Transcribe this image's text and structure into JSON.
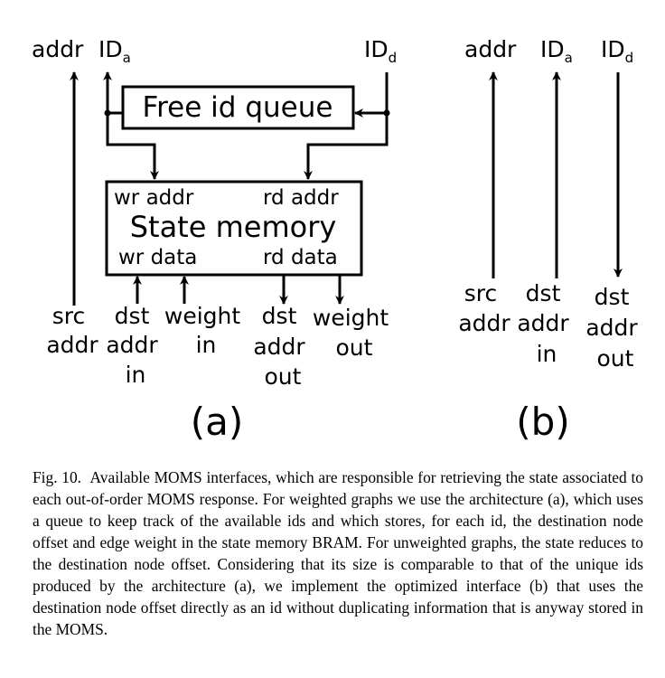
{
  "figure_a": {
    "top_addr": "addr",
    "top_ida": "ID",
    "top_ida_sub": "a",
    "top_idd": "ID",
    "top_idd_sub": "d",
    "queue_label": "Free id queue",
    "memory_title": "State memory",
    "wr_addr": "wr addr",
    "rd_addr": "rd addr",
    "wr_data": "wr data",
    "rd_data": "rd data",
    "src_addr": [
      "src",
      "addr"
    ],
    "dst_addr_in": [
      "dst",
      "addr",
      "in"
    ],
    "weight_in": [
      "weight",
      "in"
    ],
    "dst_addr_out": [
      "dst",
      "addr",
      "out"
    ],
    "weight_out": [
      "weight",
      "out"
    ],
    "panel_label": "(a)"
  },
  "figure_b": {
    "top_addr": "addr",
    "top_ida": "ID",
    "top_ida_sub": "a",
    "top_idd": "ID",
    "top_idd_sub": "d",
    "src_addr": [
      "src",
      "addr"
    ],
    "dst_addr_in": [
      "dst",
      "addr",
      "in"
    ],
    "dst_addr_out": [
      "dst",
      "addr",
      "out"
    ],
    "panel_label": "(b)"
  },
  "caption": {
    "label": "Fig. 10.",
    "text": "Available MOMS interfaces, which are responsible for retrieving the state associated to each out-of-order MOMS response. For weighted graphs we use the architecture (a), which uses a queue to keep track of the available ids and which stores, for each id, the destination node offset and edge weight in the state memory BRAM. For unweighted graphs, the state reduces to the destination node offset. Considering that its size is comparable to that of the unique ids produced by the architecture (a), we implement the optimized interface (b) that uses the destination node offset directly as an id without duplicating information that is anyway stored in the MOMS."
  }
}
